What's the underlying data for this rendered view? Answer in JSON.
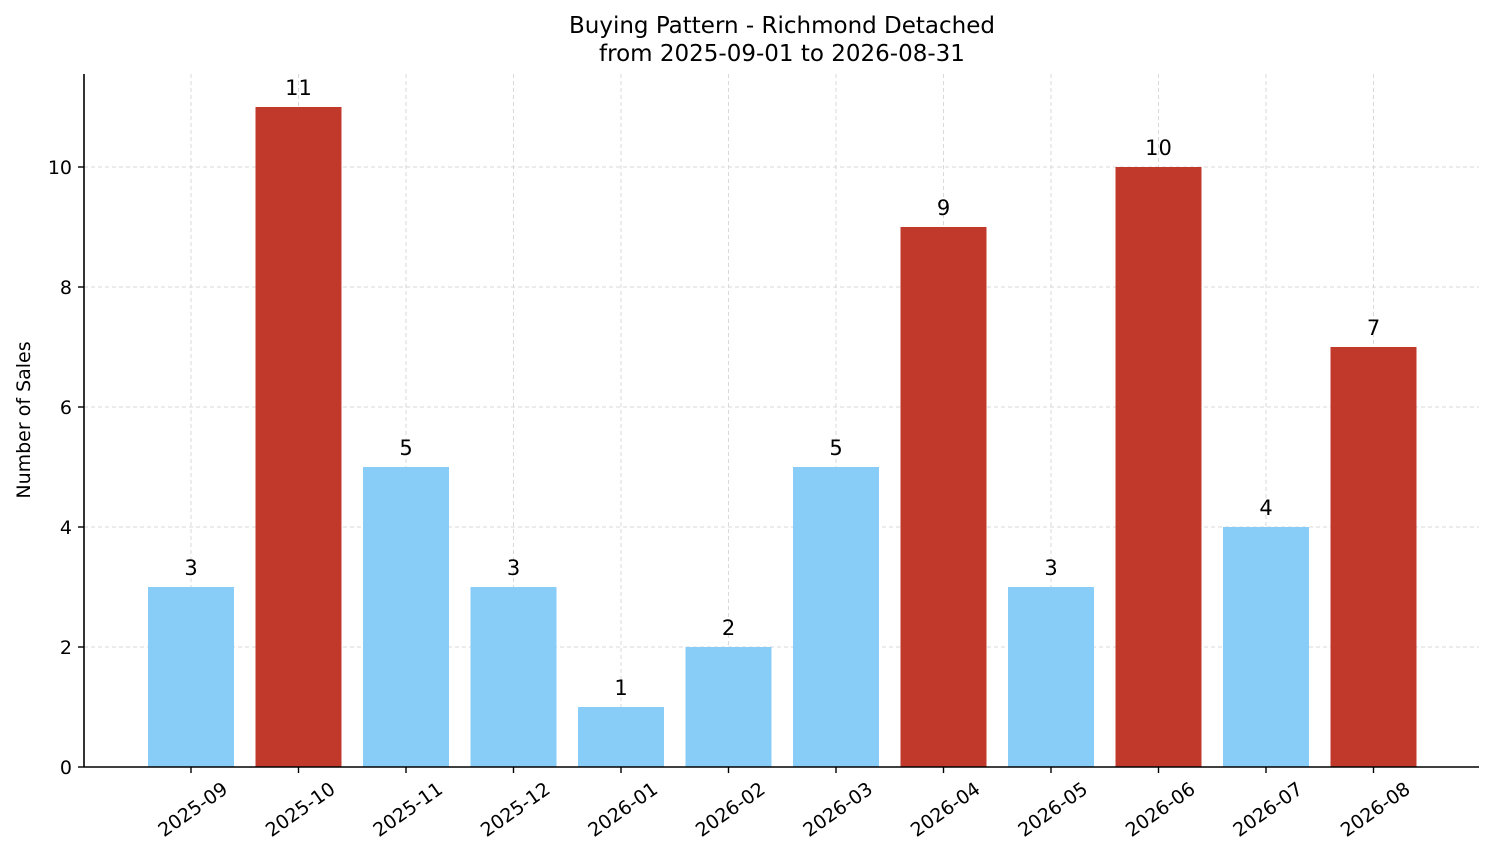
{
  "chart_data": {
    "type": "bar",
    "title": "Buying Pattern - Richmond Detached",
    "subtitle": "from 2025-09-01 to 2026-08-31",
    "xlabel": "",
    "ylabel": "Number of Sales",
    "categories": [
      "2025-09",
      "2025-10",
      "2025-11",
      "2025-12",
      "2026-01",
      "2026-02",
      "2026-03",
      "2026-04",
      "2026-05",
      "2026-06",
      "2026-07",
      "2026-08"
    ],
    "values": [
      3,
      11,
      5,
      3,
      1,
      2,
      5,
      9,
      3,
      10,
      4,
      7
    ],
    "ylim": [
      0,
      11.55
    ],
    "yticks": [
      0,
      2,
      4,
      6,
      8,
      10
    ],
    "grid": true,
    "colors": {
      "low": "#87cdf7",
      "high": "#c0392b"
    }
  }
}
